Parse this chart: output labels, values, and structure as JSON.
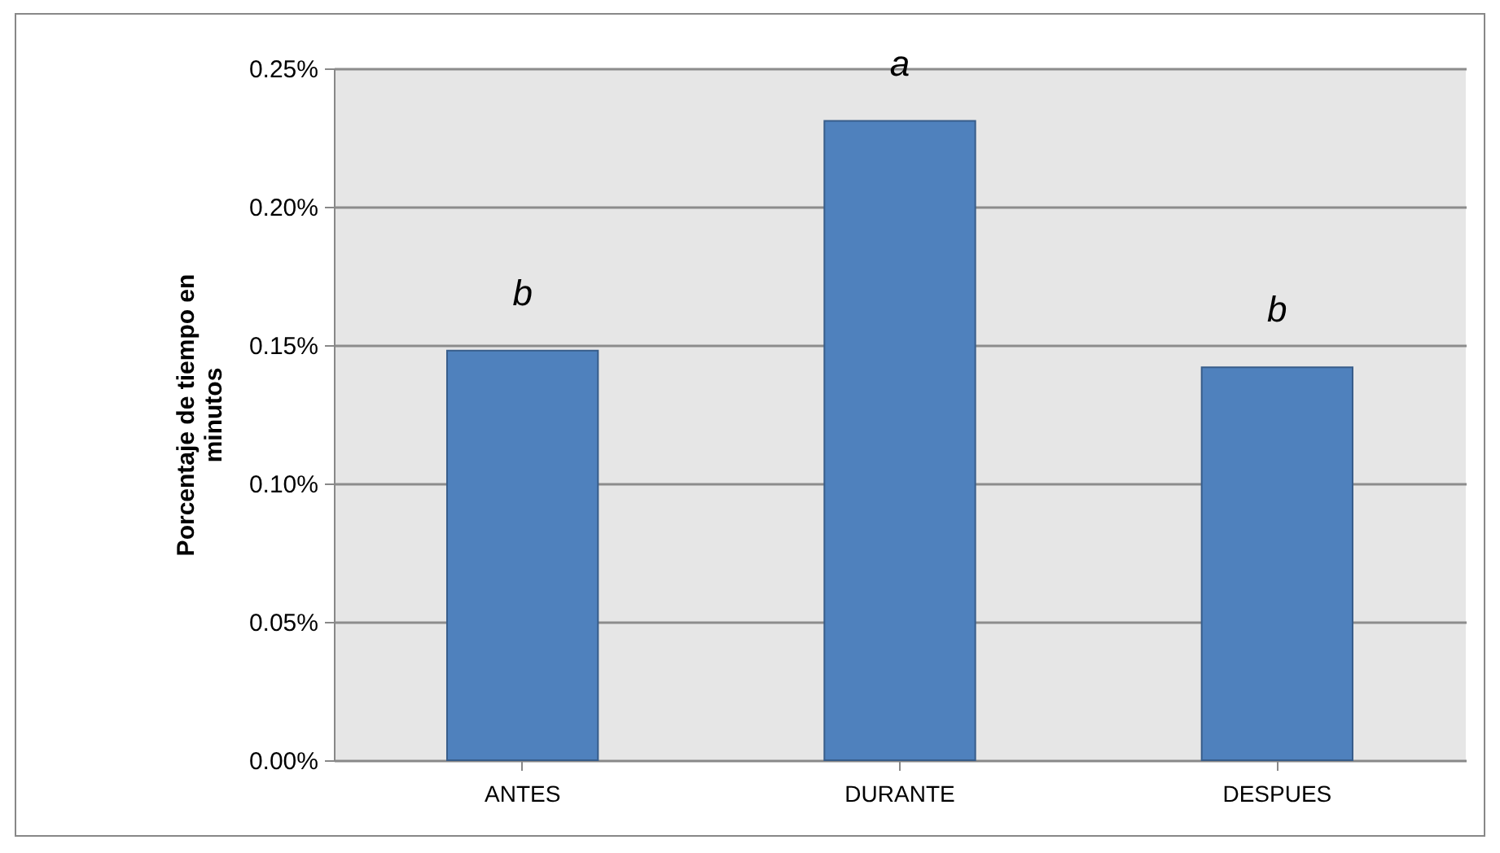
{
  "chart_data": {
    "type": "bar",
    "ylabel": "Porcentaje  de tiempo en minutos",
    "categories": [
      "ANTES",
      "DURANTE",
      "DESPUES"
    ],
    "values": [
      0.148,
      0.231,
      0.142
    ],
    "color": "#4f81bd",
    "ylim": [
      0,
      0.25
    ],
    "yticks": [
      {
        "value": 0,
        "label": "0.00%"
      },
      {
        "value": 0.05,
        "label": "0.05%"
      },
      {
        "value": 0.1,
        "label": "0.10%"
      },
      {
        "value": 0.15,
        "label": "0.15%"
      },
      {
        "value": 0.2,
        "label": "0.20%"
      },
      {
        "value": 0.25,
        "label": "0.25%"
      }
    ],
    "grid": "y",
    "annotations": [
      "b",
      "a",
      "b"
    ]
  }
}
